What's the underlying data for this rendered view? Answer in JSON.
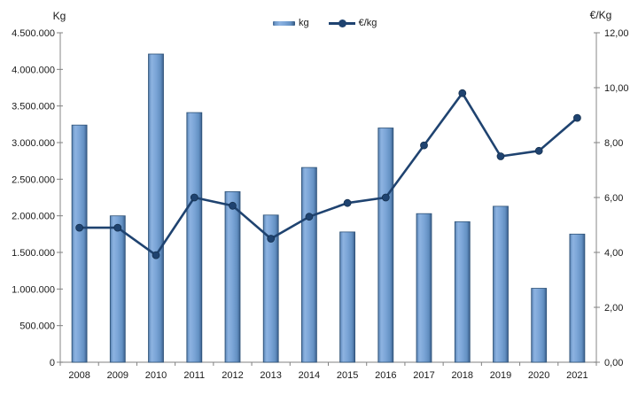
{
  "chart_data": {
    "type": "combo",
    "title": "",
    "categories": [
      "2008",
      "2009",
      "2010",
      "2011",
      "2012",
      "2013",
      "2014",
      "2015",
      "2016",
      "2017",
      "2018",
      "2019",
      "2020",
      "2021"
    ],
    "series": [
      {
        "name": "kg",
        "kind": "bar",
        "axis": "left",
        "color": "#7ba5d7",
        "values": [
          3240000,
          2000000,
          4210000,
          3410000,
          2330000,
          2010000,
          2660000,
          1780000,
          3200000,
          2030000,
          1920000,
          2130000,
          1010000,
          1750000
        ]
      },
      {
        "name": "€/kg",
        "kind": "line",
        "axis": "right",
        "color": "#1f4370",
        "values": [
          4.9,
          4.9,
          3.9,
          6.0,
          5.7,
          4.5,
          5.3,
          5.8,
          6.0,
          7.9,
          9.8,
          7.5,
          7.7,
          8.9
        ]
      }
    ],
    "left_axis": {
      "title": "Kg",
      "min": 0,
      "max": 4500000,
      "step": 500000,
      "tick_labels": [
        "4.500.000",
        "4.000.000",
        "3.500.000",
        "3.000.000",
        "2.500.000",
        "2.000.000",
        "1.500.000",
        "1.000.000",
        "500.000",
        "0"
      ]
    },
    "right_axis": {
      "title": "€/Kg",
      "min": 0,
      "max": 12,
      "step": 2,
      "tick_labels": [
        "12,00",
        "10,00",
        "8,00",
        "6,00",
        "4,00",
        "2,00",
        "0,00"
      ]
    },
    "legend": {
      "position": "top-center",
      "entries": [
        {
          "label": "kg",
          "swatch": "bar"
        },
        {
          "label": "€/kg",
          "swatch": "line"
        }
      ]
    },
    "grid": false,
    "colors": {
      "bar_fill": "#7ba5d7",
      "bar_fill_light": "#8db3e1",
      "bar_edge_dark": "#33567e",
      "bar_stroke": "#2f5378",
      "line": "#1f4370",
      "axis_line": "#9b9b9b",
      "tick": "#808080",
      "text": "#1a1a1a",
      "background": "#ffffff"
    }
  }
}
